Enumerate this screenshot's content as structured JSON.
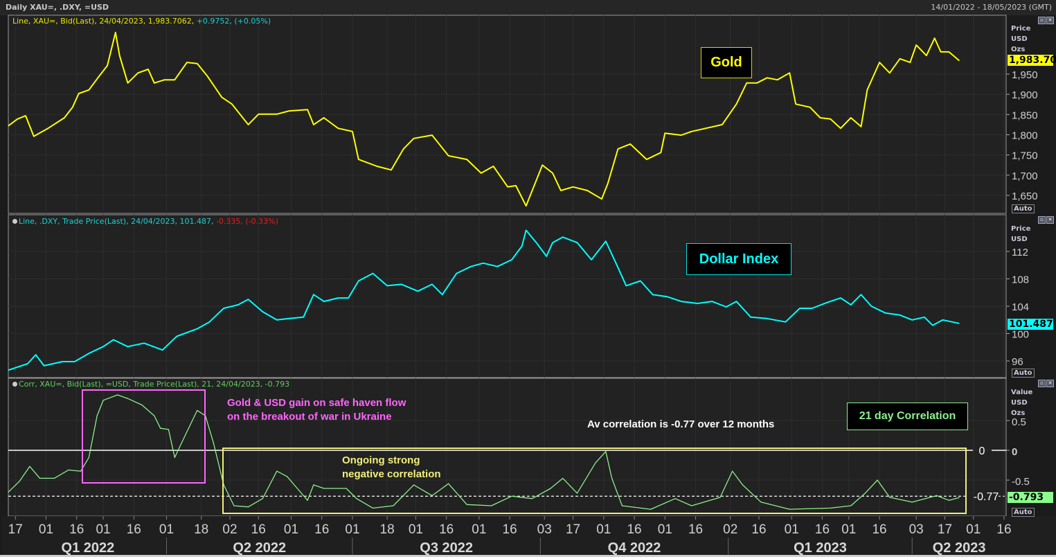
{
  "header": {
    "title": "Daily XAU=, .DXY, =USD",
    "date_range": "14/01/2022 - 18/05/2023 (GMT)"
  },
  "colors": {
    "gold": "#ffff00",
    "dxy": "#00ffff",
    "corr": "#8cf08c",
    "negative": "#e02020",
    "pink": "#ff66ff",
    "background": "#222222"
  },
  "x_axis": {
    "ticks": [
      [
        "17",
        "2022-01-17"
      ],
      [
        "01",
        "2022-02-01"
      ],
      [
        "16",
        "2022-02-16"
      ],
      [
        "01",
        "2022-03-01"
      ],
      [
        "16",
        "2022-03-16"
      ],
      [
        "01",
        "2022-04-01"
      ],
      [
        "18",
        "2022-04-18"
      ],
      [
        "02",
        "2022-05-02"
      ],
      [
        "16",
        "2022-05-16"
      ],
      [
        "01",
        "2022-06-01"
      ],
      [
        "16",
        "2022-06-16"
      ],
      [
        "01",
        "2022-07-01"
      ],
      [
        "18",
        "2022-07-18"
      ],
      [
        "01",
        "2022-08-01"
      ],
      [
        "16",
        "2022-08-16"
      ],
      [
        "01",
        "2022-09-01"
      ],
      [
        "16",
        "2022-09-16"
      ],
      [
        "03",
        "2022-10-03"
      ],
      [
        "17",
        "2022-10-17"
      ],
      [
        "01",
        "2022-11-01"
      ],
      [
        "16",
        "2022-11-16"
      ],
      [
        "01",
        "2022-12-01"
      ],
      [
        "16",
        "2022-12-16"
      ],
      [
        "02",
        "2023-01-02"
      ],
      [
        "16",
        "2023-01-16"
      ],
      [
        "01",
        "2023-02-01"
      ],
      [
        "16",
        "2023-02-16"
      ],
      [
        "01",
        "2023-03-01"
      ],
      [
        "16",
        "2023-03-16"
      ],
      [
        "03",
        "2023-04-03"
      ],
      [
        "17",
        "2023-04-17"
      ],
      [
        "01",
        "2023-05-01"
      ],
      [
        "16",
        "2023-05-16"
      ]
    ],
    "quarters": [
      {
        "label": "Q1 2022",
        "start": "2022-01-14",
        "end": "2022-04-01"
      },
      {
        "label": "Q2 2022",
        "start": "2022-04-01",
        "end": "2022-07-01"
      },
      {
        "label": "Q3 2022",
        "start": "2022-07-01",
        "end": "2022-10-01"
      },
      {
        "label": "Q4 2022",
        "start": "2022-10-01",
        "end": "2023-01-01"
      },
      {
        "label": "Q1 2023",
        "start": "2023-01-01",
        "end": "2023-04-01"
      },
      {
        "label": "Q2 2023",
        "start": "2023-04-01",
        "end": "2023-05-18"
      }
    ],
    "range": [
      "2022-01-14",
      "2023-05-18"
    ]
  },
  "chart_data": [
    {
      "type": "line",
      "legend_main": "Line, XAU=, Bid(Last), 24/04/2023, 1,983.7062,",
      "legend_change": "+0.9752, (+0.05%)",
      "unit_lines": [
        "Price",
        "USD",
        "Ozs"
      ],
      "yticks": [
        1650,
        1700,
        1750,
        1800,
        1850,
        1900,
        1950
      ],
      "ytick_labels": [
        "1,650",
        "1,700",
        "1,750",
        "1,800",
        "1,850",
        "1,900",
        "1,950"
      ],
      "ylim": [
        1600,
        2090
      ],
      "last_value": 1983.7,
      "last_label": "1,983.70",
      "scale_mode": "Auto",
      "annotation": "Gold",
      "points": [
        [
          "2022-01-13",
          1820
        ],
        [
          "2022-01-18",
          1839
        ],
        [
          "2022-01-22",
          1847
        ],
        [
          "2022-01-26",
          1796
        ],
        [
          "2022-02-02",
          1816
        ],
        [
          "2022-02-10",
          1842
        ],
        [
          "2022-02-14",
          1868
        ],
        [
          "2022-02-17",
          1902
        ],
        [
          "2022-02-22",
          1911
        ],
        [
          "2022-02-27",
          1945
        ],
        [
          "2022-03-03",
          1971
        ],
        [
          "2022-03-07",
          2053
        ],
        [
          "2022-03-09",
          1996
        ],
        [
          "2022-03-13",
          1928
        ],
        [
          "2022-03-18",
          1953
        ],
        [
          "2022-03-23",
          1962
        ],
        [
          "2022-03-26",
          1928
        ],
        [
          "2022-03-31",
          1936
        ],
        [
          "2022-04-05",
          1936
        ],
        [
          "2022-04-11",
          1979
        ],
        [
          "2022-04-16",
          1976
        ],
        [
          "2022-04-21",
          1945
        ],
        [
          "2022-04-28",
          1893
        ],
        [
          "2022-05-03",
          1876
        ],
        [
          "2022-05-11",
          1825
        ],
        [
          "2022-05-16",
          1851
        ],
        [
          "2022-05-25",
          1851
        ],
        [
          "2022-05-31",
          1859
        ],
        [
          "2022-06-09",
          1862
        ],
        [
          "2022-06-12",
          1825
        ],
        [
          "2022-06-17",
          1842
        ],
        [
          "2022-06-24",
          1816
        ],
        [
          "2022-07-01",
          1808
        ],
        [
          "2022-07-04",
          1739
        ],
        [
          "2022-07-13",
          1722
        ],
        [
          "2022-07-20",
          1713
        ],
        [
          "2022-07-26",
          1765
        ],
        [
          "2022-07-31",
          1791
        ],
        [
          "2022-08-09",
          1799
        ],
        [
          "2022-08-17",
          1748
        ],
        [
          "2022-08-26",
          1739
        ],
        [
          "2022-09-02",
          1705
        ],
        [
          "2022-09-08",
          1722
        ],
        [
          "2022-09-15",
          1671
        ],
        [
          "2022-09-19",
          1674
        ],
        [
          "2022-09-24",
          1624
        ],
        [
          "2022-09-27",
          1662
        ],
        [
          "2022-10-02",
          1725
        ],
        [
          "2022-10-07",
          1705
        ],
        [
          "2022-10-11",
          1662
        ],
        [
          "2022-10-17",
          1671
        ],
        [
          "2022-10-24",
          1662
        ],
        [
          "2022-10-31",
          1641
        ],
        [
          "2022-11-03",
          1679
        ],
        [
          "2022-11-08",
          1765
        ],
        [
          "2022-11-14",
          1777
        ],
        [
          "2022-11-22",
          1739
        ],
        [
          "2022-11-29",
          1756
        ],
        [
          "2022-12-01",
          1804
        ],
        [
          "2022-12-09",
          1799
        ],
        [
          "2022-12-14",
          1808
        ],
        [
          "2022-12-21",
          1816
        ],
        [
          "2022-12-29",
          1825
        ],
        [
          "2023-01-05",
          1876
        ],
        [
          "2023-01-10",
          1928
        ],
        [
          "2023-01-15",
          1928
        ],
        [
          "2023-01-20",
          1941
        ],
        [
          "2023-01-25",
          1936
        ],
        [
          "2023-01-31",
          1953
        ],
        [
          "2023-02-03",
          1876
        ],
        [
          "2023-02-10",
          1868
        ],
        [
          "2023-02-15",
          1842
        ],
        [
          "2023-02-20",
          1839
        ],
        [
          "2023-02-25",
          1816
        ],
        [
          "2023-03-02",
          1842
        ],
        [
          "2023-03-07",
          1820
        ],
        [
          "2023-03-10",
          1911
        ],
        [
          "2023-03-16",
          1979
        ],
        [
          "2023-03-21",
          1953
        ],
        [
          "2023-03-26",
          1988
        ],
        [
          "2023-03-31",
          1979
        ],
        [
          "2023-04-03",
          2022
        ],
        [
          "2023-04-08",
          1996
        ],
        [
          "2023-04-12",
          2039
        ],
        [
          "2023-04-15",
          2005
        ],
        [
          "2023-04-19",
          2005
        ],
        [
          "2023-04-24",
          1983.7
        ]
      ]
    },
    {
      "type": "line",
      "legend_main": "Line, .DXY, Trade Price(Last), 24/04/2023, 101.487,",
      "legend_change": "-0.335, (-0.33%)",
      "unit_lines": [
        "Price",
        "USD"
      ],
      "yticks": [
        96,
        100,
        104,
        108,
        112
      ],
      "ytick_labels": [
        "96",
        "100",
        "104",
        "108",
        "112"
      ],
      "ylim": [
        94.2,
        118
      ],
      "last_value": 101.487,
      "last_label": "101.487",
      "scale_mode": "Auto",
      "annotation": "Dollar Index",
      "points": [
        [
          "2022-01-13",
          94.6
        ],
        [
          "2022-01-23",
          95.6
        ],
        [
          "2022-01-27",
          96.9
        ],
        [
          "2022-01-31",
          95.3
        ],
        [
          "2022-02-09",
          95.9
        ],
        [
          "2022-02-15",
          95.9
        ],
        [
          "2022-02-22",
          97.1
        ],
        [
          "2022-03-01",
          98.1
        ],
        [
          "2022-03-06",
          99.1
        ],
        [
          "2022-03-13",
          98.1
        ],
        [
          "2022-03-21",
          98.6
        ],
        [
          "2022-03-30",
          97.6
        ],
        [
          "2022-04-06",
          99.6
        ],
        [
          "2022-04-16",
          100.7
        ],
        [
          "2022-04-22",
          101.7
        ],
        [
          "2022-04-29",
          103.7
        ],
        [
          "2022-05-06",
          104.2
        ],
        [
          "2022-05-11",
          105.0
        ],
        [
          "2022-05-18",
          103.2
        ],
        [
          "2022-05-25",
          102.0
        ],
        [
          "2022-05-31",
          102.2
        ],
        [
          "2022-06-07",
          102.4
        ],
        [
          "2022-06-12",
          105.7
        ],
        [
          "2022-06-17",
          104.7
        ],
        [
          "2022-06-24",
          105.2
        ],
        [
          "2022-06-29",
          105.2
        ],
        [
          "2022-07-04",
          107.7
        ],
        [
          "2022-07-11",
          108.8
        ],
        [
          "2022-07-18",
          107.0
        ],
        [
          "2022-07-25",
          107.2
        ],
        [
          "2022-08-02",
          106.2
        ],
        [
          "2022-08-09",
          107.2
        ],
        [
          "2022-08-14",
          105.7
        ],
        [
          "2022-08-21",
          108.8
        ],
        [
          "2022-08-28",
          109.8
        ],
        [
          "2022-09-03",
          110.3
        ],
        [
          "2022-09-10",
          109.8
        ],
        [
          "2022-09-17",
          110.8
        ],
        [
          "2022-09-22",
          112.8
        ],
        [
          "2022-09-24",
          115.1
        ],
        [
          "2022-09-29",
          113.3
        ],
        [
          "2022-10-04",
          111.3
        ],
        [
          "2022-10-07",
          113.3
        ],
        [
          "2022-10-12",
          114.1
        ],
        [
          "2022-10-19",
          113.3
        ],
        [
          "2022-10-26",
          110.8
        ],
        [
          "2022-11-02",
          113.5
        ],
        [
          "2022-11-07",
          110.3
        ],
        [
          "2022-11-12",
          107.0
        ],
        [
          "2022-11-19",
          107.7
        ],
        [
          "2022-11-25",
          105.7
        ],
        [
          "2022-12-02",
          105.4
        ],
        [
          "2022-12-09",
          104.7
        ],
        [
          "2022-12-17",
          104.4
        ],
        [
          "2022-12-24",
          104.7
        ],
        [
          "2022-12-31",
          103.9
        ],
        [
          "2023-01-05",
          104.7
        ],
        [
          "2023-01-12",
          102.4
        ],
        [
          "2023-01-20",
          102.2
        ],
        [
          "2023-01-29",
          101.7
        ],
        [
          "2023-02-05",
          103.7
        ],
        [
          "2023-02-11",
          103.7
        ],
        [
          "2023-02-18",
          104.5
        ],
        [
          "2023-02-25",
          105.2
        ],
        [
          "2023-03-02",
          104.2
        ],
        [
          "2023-03-07",
          105.7
        ],
        [
          "2023-03-12",
          104.0
        ],
        [
          "2023-03-19",
          103.0
        ],
        [
          "2023-03-26",
          102.7
        ],
        [
          "2023-04-01",
          102.0
        ],
        [
          "2023-04-07",
          102.4
        ],
        [
          "2023-04-11",
          101.2
        ],
        [
          "2023-04-16",
          102.0
        ],
        [
          "2023-04-24",
          101.487
        ]
      ]
    },
    {
      "type": "line",
      "legend_main": "Corr, XAU=, Bid(Last), =USD, Trade Price(Last),  21, 24/04/2023, -0.793",
      "unit_lines": [
        "Value",
        "USD",
        "Ozs"
      ],
      "yticks": [
        0.5,
        0,
        -0.5
      ],
      "ytick_labels": [
        "0.5",
        "0",
        "-0.5"
      ],
      "ylim": [
        -1.1,
        1.0
      ],
      "last_value": -0.793,
      "last_label": "-0.793",
      "scale_mode": "Auto",
      "reference_lines": [
        {
          "value": 0,
          "label": "0",
          "style": "solid"
        },
        {
          "value": -0.77,
          "label": "-0.77",
          "style": "dashed"
        }
      ],
      "annotations": {
        "pink_note": [
          "Gold & USD gain on safe haven flow",
          "on the breakout of war in Ukraine"
        ],
        "average_note": "Av correlation is -0.77 over 12 months",
        "badge": "21 day Correlation",
        "yellow_note": [
          "Ongoing strong",
          "negative correlation"
        ]
      },
      "points": [
        [
          "2022-01-13",
          -0.72
        ],
        [
          "2022-01-19",
          -0.52
        ],
        [
          "2022-01-24",
          -0.27
        ],
        [
          "2022-01-29",
          -0.47
        ],
        [
          "2022-02-05",
          -0.47
        ],
        [
          "2022-02-12",
          -0.33
        ],
        [
          "2022-02-18",
          -0.35
        ],
        [
          "2022-02-22",
          -0.12
        ],
        [
          "2022-02-26",
          0.58
        ],
        [
          "2022-03-01",
          0.84
        ],
        [
          "2022-03-08",
          0.93
        ],
        [
          "2022-03-13",
          0.87
        ],
        [
          "2022-03-20",
          0.76
        ],
        [
          "2022-03-26",
          0.58
        ],
        [
          "2022-03-29",
          0.37
        ],
        [
          "2022-04-02",
          0.35
        ],
        [
          "2022-04-05",
          -0.12
        ],
        [
          "2022-04-09",
          0.17
        ],
        [
          "2022-04-16",
          0.67
        ],
        [
          "2022-04-20",
          0.58
        ],
        [
          "2022-04-24",
          0.12
        ],
        [
          "2022-04-29",
          -0.58
        ],
        [
          "2022-05-04",
          -0.93
        ],
        [
          "2022-05-11",
          -0.95
        ],
        [
          "2022-05-18",
          -0.81
        ],
        [
          "2022-05-25",
          -0.35
        ],
        [
          "2022-05-30",
          -0.44
        ],
        [
          "2022-06-04",
          -0.64
        ],
        [
          "2022-06-09",
          -0.84
        ],
        [
          "2022-06-12",
          -0.58
        ],
        [
          "2022-06-17",
          -0.64
        ],
        [
          "2022-06-28",
          -0.64
        ],
        [
          "2022-07-03",
          -0.81
        ],
        [
          "2022-07-11",
          -0.97
        ],
        [
          "2022-07-21",
          -0.93
        ],
        [
          "2022-07-31",
          -0.58
        ],
        [
          "2022-08-09",
          -0.76
        ],
        [
          "2022-08-17",
          -0.56
        ],
        [
          "2022-08-26",
          -0.91
        ],
        [
          "2022-09-07",
          -0.93
        ],
        [
          "2022-09-17",
          -0.77
        ],
        [
          "2022-09-27",
          -0.81
        ],
        [
          "2022-10-06",
          -0.64
        ],
        [
          "2022-10-12",
          -0.47
        ],
        [
          "2022-10-19",
          -0.72
        ],
        [
          "2022-10-28",
          -0.21
        ],
        [
          "2022-11-02",
          -0.02
        ],
        [
          "2022-11-05",
          -0.47
        ],
        [
          "2022-11-10",
          -0.93
        ],
        [
          "2022-11-24",
          -0.99
        ],
        [
          "2022-12-06",
          -0.81
        ],
        [
          "2022-12-14",
          -0.93
        ],
        [
          "2022-12-28",
          -0.79
        ],
        [
          "2023-01-03",
          -0.35
        ],
        [
          "2023-01-08",
          -0.58
        ],
        [
          "2023-01-17",
          -0.87
        ],
        [
          "2023-01-31",
          -0.99
        ],
        [
          "2023-02-20",
          -0.97
        ],
        [
          "2023-03-02",
          -0.93
        ],
        [
          "2023-03-09",
          -0.72
        ],
        [
          "2023-03-15",
          -0.5
        ],
        [
          "2023-03-21",
          -0.79
        ],
        [
          "2023-04-01",
          -0.87
        ],
        [
          "2023-04-13",
          -0.76
        ],
        [
          "2023-04-19",
          -0.84
        ],
        [
          "2023-04-24",
          -0.793
        ]
      ]
    }
  ]
}
